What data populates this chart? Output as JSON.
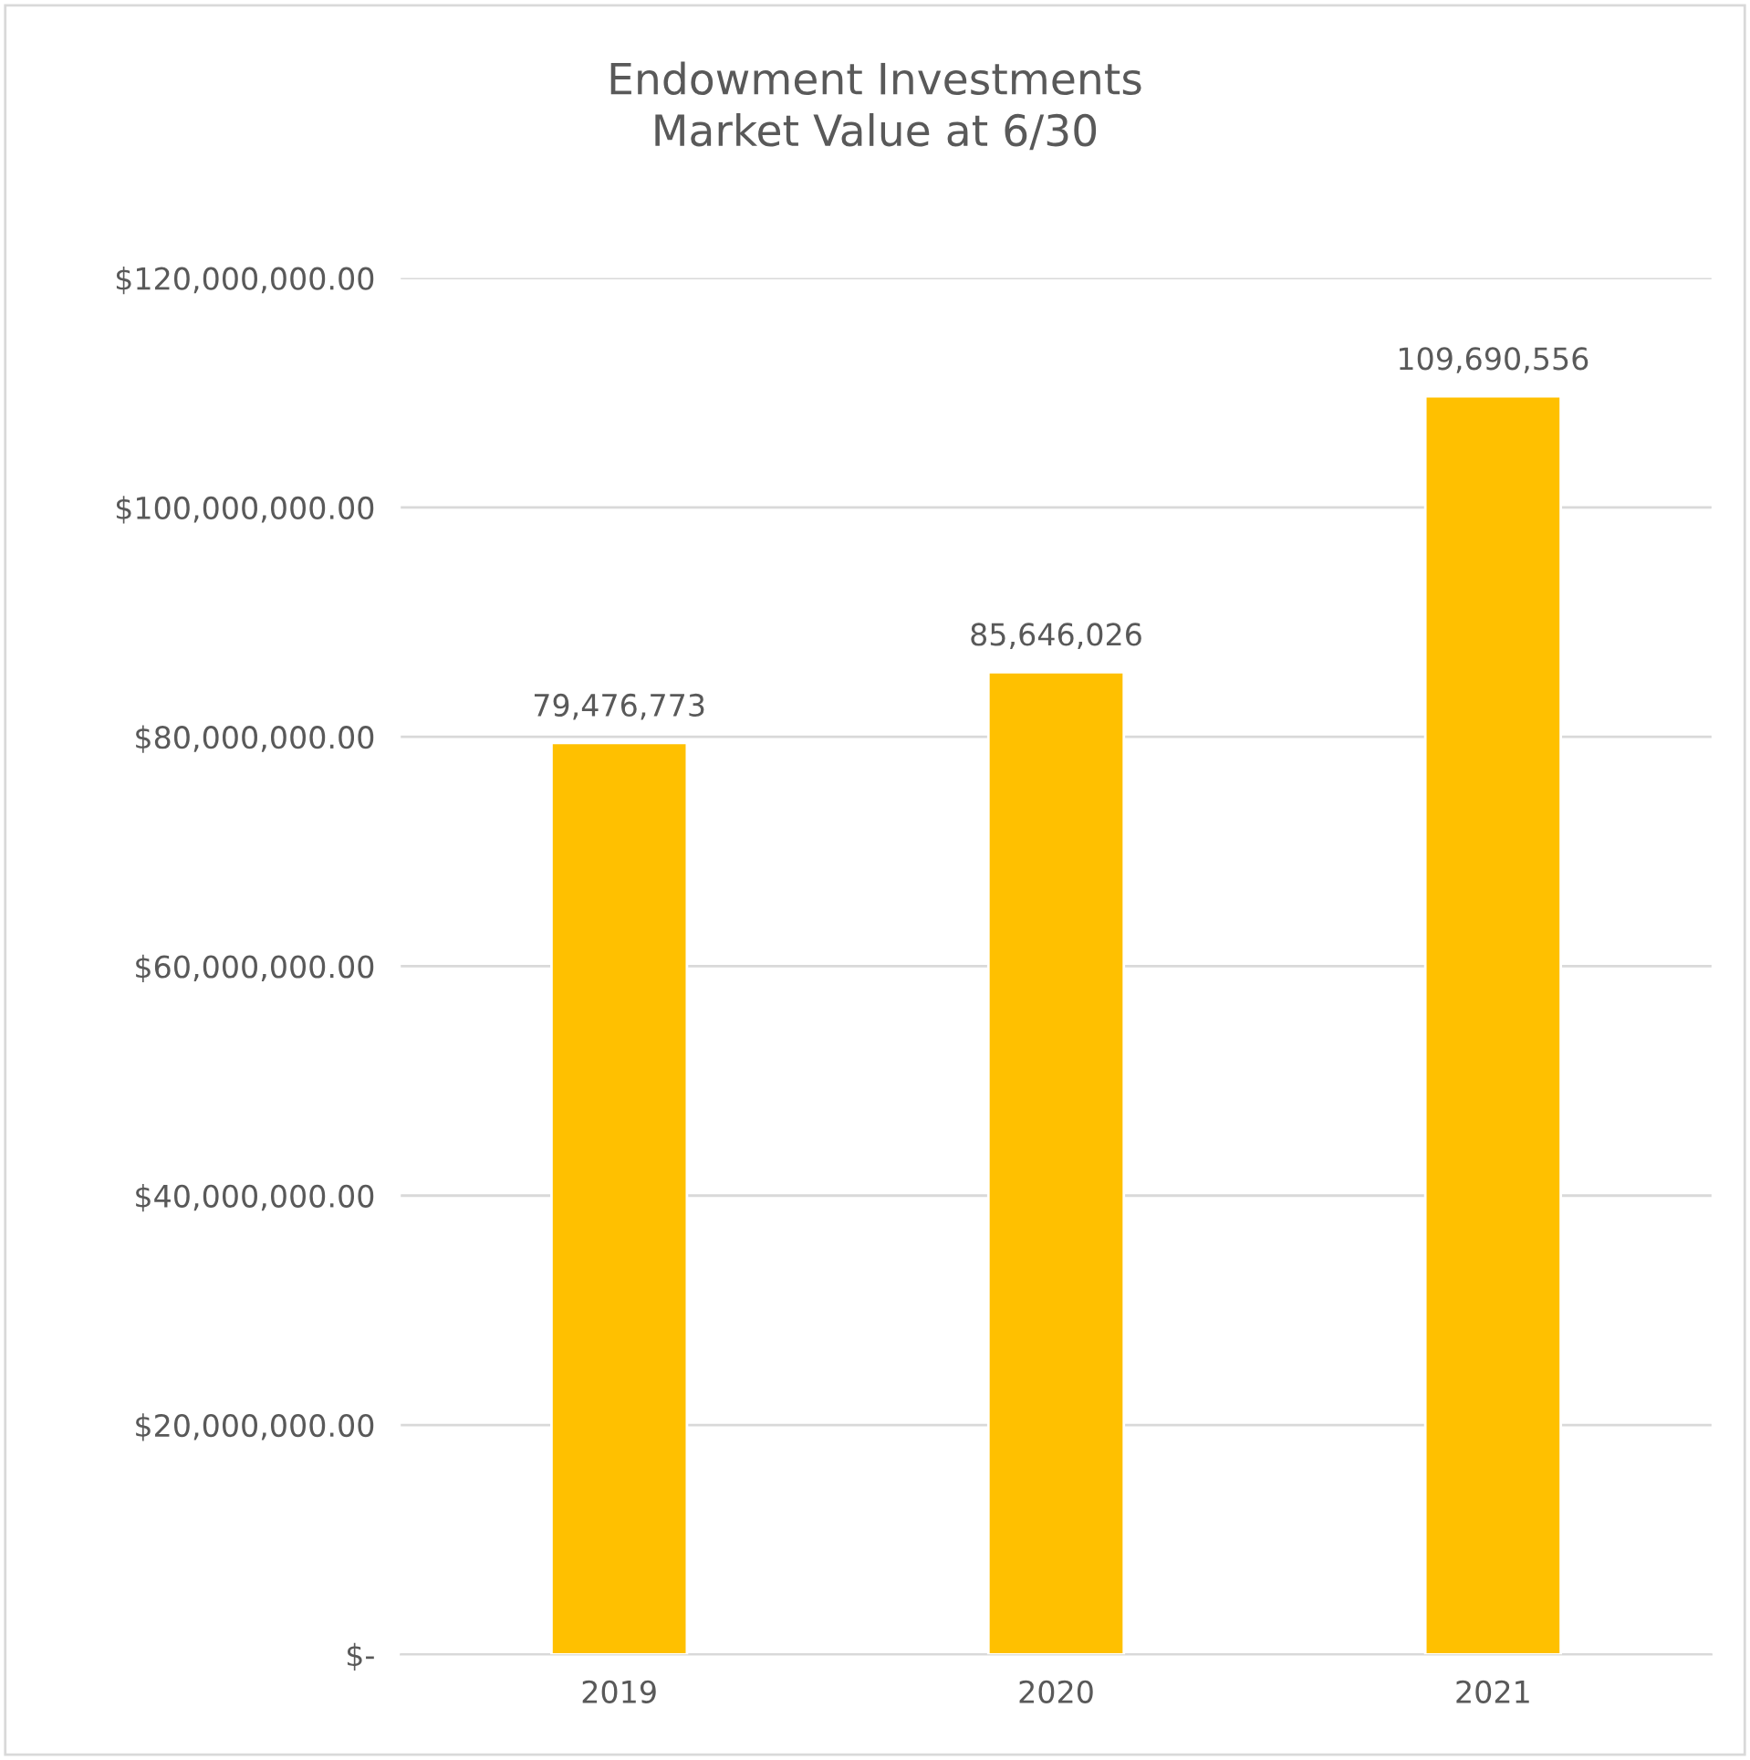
{
  "chart_data": {
    "type": "bar",
    "title": "Endowment Investments\nMarket Value at 6/30",
    "categories": [
      "2019",
      "2020",
      "2021"
    ],
    "values": [
      79476773,
      85646026,
      109690556
    ],
    "value_labels": [
      "79,476,773",
      "85,646,026",
      "109,690,556"
    ],
    "color": "#ffc000",
    "ylim": [
      0,
      120000000
    ],
    "yticks": [
      {
        "value": 0,
        "label": "$-"
      },
      {
        "value": 20000000,
        "label": "$20,000,000.00"
      },
      {
        "value": 40000000,
        "label": "$40,000,000.00"
      },
      {
        "value": 60000000,
        "label": "$60,000,000.00"
      },
      {
        "value": 80000000,
        "label": "$80,000,000.00"
      },
      {
        "value": 100000000,
        "label": "$100,000,000.00"
      },
      {
        "value": 120000000,
        "label": "$120,000,000.00"
      }
    ],
    "grid": "y"
  }
}
